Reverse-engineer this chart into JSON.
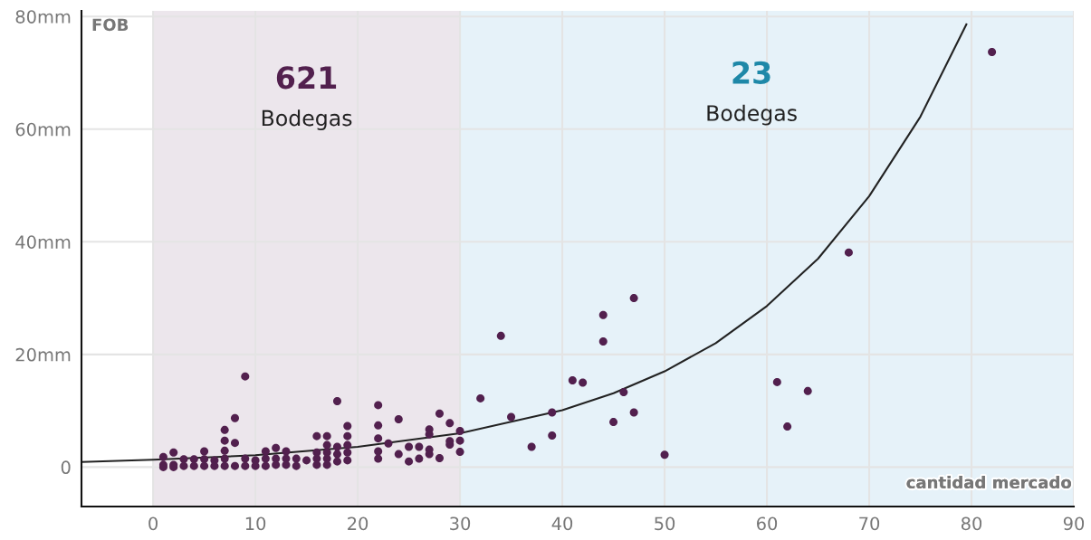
{
  "chart_data": {
    "type": "scatter",
    "xlabel": "cantidad mercado",
    "ylabel": "FOB",
    "xlim": [
      -7,
      90
    ],
    "ylim": [
      -7,
      81
    ],
    "xticks": [
      0,
      10,
      20,
      30,
      40,
      50,
      60,
      70,
      80,
      90
    ],
    "yticks": [
      0,
      {
        "value": 20,
        "label": "20mm"
      },
      {
        "value": 40,
        "label": "40mm"
      },
      {
        "value": 60,
        "label": "60mm"
      },
      {
        "value": 80,
        "label": "80mm"
      }
    ],
    "grid": true,
    "bands": [
      {
        "axis": "x",
        "from": 0,
        "to": 30,
        "color": "#ece6ec"
      },
      {
        "axis": "x",
        "from": 30,
        "to": 90,
        "color": "#e6f2f9"
      }
    ],
    "annotations": [
      "621",
      "Bodegas",
      "23",
      "Bodegas"
    ],
    "series": [
      {
        "color": "#52204e",
        "marker": "circle",
        "x": [
          1,
          1,
          1,
          2,
          2,
          2,
          3,
          3,
          4,
          4,
          5,
          5,
          5,
          6,
          6,
          7,
          7,
          7,
          7,
          7,
          8,
          8,
          8,
          9,
          9,
          9,
          10,
          10,
          11,
          11,
          11,
          12,
          12,
          12,
          13,
          13,
          13,
          14,
          14,
          15,
          16,
          16,
          16,
          16,
          17,
          17,
          17,
          17,
          17,
          18,
          18,
          18,
          18,
          19,
          19,
          19,
          19,
          19,
          22,
          22,
          22,
          22,
          22,
          23,
          24,
          24,
          25,
          25,
          26,
          26,
          27,
          27,
          27,
          27,
          28,
          28,
          29,
          29,
          29,
          30,
          30,
          30,
          32,
          34,
          35,
          37,
          39,
          39,
          41,
          42,
          44,
          44,
          45,
          46,
          47,
          47,
          50,
          61,
          62,
          64,
          68,
          82
        ],
        "values": [
          1.8,
          0.4,
          0,
          2.6,
          0.4,
          0,
          1.4,
          0.2,
          1.4,
          0.2,
          2.8,
          1.4,
          0.2,
          1.2,
          0.2,
          6.6,
          4.7,
          2.9,
          1.5,
          0.2,
          8.7,
          4.3,
          0.2,
          16.1,
          1.5,
          0.2,
          1.2,
          0.2,
          2.8,
          1.5,
          0.2,
          3.4,
          1.5,
          0.4,
          2.8,
          1.5,
          0.4,
          1.5,
          0.2,
          1.2,
          5.5,
          2.6,
          1.5,
          0.4,
          5.5,
          3.9,
          2.6,
          1.5,
          0.4,
          11.7,
          3.6,
          2.3,
          1,
          7.3,
          5.5,
          3.9,
          2.6,
          1.2,
          11,
          7.4,
          5.1,
          2.8,
          1.5,
          4.2,
          8.5,
          2.3,
          3.6,
          1,
          3.6,
          1.5,
          6.7,
          5.8,
          3.1,
          2.3,
          9.5,
          1.6,
          7.8,
          4.6,
          4,
          6.4,
          4.7,
          2.7,
          12.2,
          23.3,
          8.9,
          3.6,
          9.7,
          5.6,
          15.4,
          15,
          27,
          22.3,
          8,
          13.3,
          30,
          9.7,
          2.2,
          15.1,
          7.2,
          13.5,
          38.1,
          73.7
        ]
      },
      {
        "type": "line",
        "color": "#222222",
        "marker": "none",
        "x": [
          -7,
          0,
          10,
          20,
          30,
          40,
          45,
          50,
          55,
          60,
          65,
          70,
          75,
          79.5
        ],
        "values": [
          0.9,
          1.3,
          2.1,
          3.6,
          6.0,
          10.1,
          13.1,
          17.0,
          22.0,
          28.6,
          37.0,
          48.1,
          62.2,
          78.6
        ]
      }
    ]
  }
}
